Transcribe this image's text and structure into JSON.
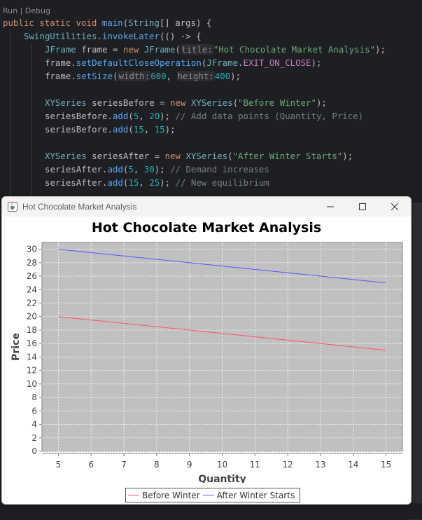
{
  "editor": {
    "run_hint": "Run | Debug",
    "lines": [
      {
        "x": 0,
        "y": 0,
        "tokens": [
          [
            "kw",
            "public "
          ],
          [
            "kw",
            "static "
          ],
          [
            "kw",
            "void "
          ],
          [
            "fn",
            "main"
          ],
          [
            "txt",
            "("
          ],
          [
            "ty",
            "String"
          ],
          [
            "txt",
            "[] args) {"
          ]
        ]
      },
      {
        "x": 30,
        "y": 19,
        "tokens": [
          [
            "ty",
            "SwingUtilities"
          ],
          [
            "txt",
            "."
          ],
          [
            "fn",
            "invokeLater"
          ],
          [
            "txt",
            "(() -> {"
          ]
        ]
      },
      {
        "x": 60,
        "y": 38,
        "tokens": [
          [
            "ty",
            "JFrame"
          ],
          [
            "txt",
            " frame = "
          ],
          [
            "kw",
            "new "
          ],
          [
            "ty",
            "JFrame"
          ],
          [
            "txt",
            "("
          ],
          [
            "hint",
            "title:"
          ],
          [
            "st",
            "\"Hot Chocolate Market Analysis\""
          ],
          [
            "txt",
            ");"
          ]
        ]
      },
      {
        "x": 60,
        "y": 57,
        "tokens": [
          [
            "txt",
            "frame."
          ],
          [
            "fn",
            "setDefaultCloseOperation"
          ],
          [
            "txt",
            "("
          ],
          [
            "ty",
            "JFrame"
          ],
          [
            "txt",
            "."
          ],
          [
            "fld",
            "EXIT_ON_CLOSE"
          ],
          [
            "txt",
            ");"
          ]
        ]
      },
      {
        "x": 60,
        "y": 76,
        "tokens": [
          [
            "txt",
            "frame."
          ],
          [
            "fn",
            "setSize"
          ],
          [
            "txt",
            "("
          ],
          [
            "hint",
            "width:"
          ],
          [
            "nu",
            "600"
          ],
          [
            "txt",
            ", "
          ],
          [
            "hint",
            "height:"
          ],
          [
            "nu",
            "400"
          ],
          [
            "txt",
            ");"
          ]
        ]
      },
      {
        "x": 60,
        "y": 114,
        "tokens": [
          [
            "ty",
            "XYSeries"
          ],
          [
            "txt",
            " seriesBefore = "
          ],
          [
            "kw",
            "new "
          ],
          [
            "ty",
            "XYSeries"
          ],
          [
            "txt",
            "("
          ],
          [
            "st",
            "\"Before Winter\""
          ],
          [
            "txt",
            ");"
          ]
        ]
      },
      {
        "x": 60,
        "y": 133,
        "tokens": [
          [
            "txt",
            "seriesBefore."
          ],
          [
            "fn",
            "add"
          ],
          [
            "txt",
            "("
          ],
          [
            "nu",
            "5"
          ],
          [
            "txt",
            ", "
          ],
          [
            "nu",
            "20"
          ],
          [
            "txt",
            "); "
          ],
          [
            "cm",
            "// Add data points (Quantity, Price)"
          ]
        ]
      },
      {
        "x": 60,
        "y": 152,
        "tokens": [
          [
            "txt",
            "seriesBefore."
          ],
          [
            "fn",
            "add"
          ],
          [
            "txt",
            "("
          ],
          [
            "nu",
            "15"
          ],
          [
            "txt",
            ", "
          ],
          [
            "nu",
            "15"
          ],
          [
            "txt",
            ");"
          ]
        ]
      },
      {
        "x": 60,
        "y": 190,
        "tokens": [
          [
            "ty",
            "XYSeries"
          ],
          [
            "txt",
            " seriesAfter = "
          ],
          [
            "kw",
            "new "
          ],
          [
            "ty",
            "XYSeries"
          ],
          [
            "txt",
            "("
          ],
          [
            "st",
            "\"After Winter Starts\""
          ],
          [
            "txt",
            ");"
          ]
        ]
      },
      {
        "x": 60,
        "y": 209,
        "tokens": [
          [
            "txt",
            "seriesAfter."
          ],
          [
            "fn",
            "add"
          ],
          [
            "txt",
            "("
          ],
          [
            "nu",
            "5"
          ],
          [
            "txt",
            ", "
          ],
          [
            "nu",
            "30"
          ],
          [
            "txt",
            "); "
          ],
          [
            "cm",
            "// Demand increases"
          ]
        ]
      },
      {
        "x": 60,
        "y": 228,
        "tokens": [
          [
            "txt",
            "seriesAfter."
          ],
          [
            "fn",
            "add"
          ],
          [
            "txt",
            "("
          ],
          [
            "nu",
            "15"
          ],
          [
            "txt",
            ", "
          ],
          [
            "nu",
            "25"
          ],
          [
            "txt",
            "); "
          ],
          [
            "cm",
            "// New equilibrium"
          ]
        ]
      }
    ]
  },
  "window": {
    "title": "Hot Chocolate Market Analysis",
    "icon": "java-cup-icon",
    "buttons": [
      "minimize-icon",
      "maximize-icon",
      "close-icon"
    ]
  },
  "chart_data": {
    "type": "line",
    "title": "Hot Chocolate Market Analysis",
    "xlabel": "Quantity",
    "ylabel": "Price",
    "xlim": [
      4.5,
      15.5
    ],
    "ylim": [
      0,
      31
    ],
    "xticks": [
      5,
      6,
      7,
      8,
      9,
      10,
      11,
      12,
      13,
      14,
      15
    ],
    "yticks": [
      0,
      2,
      4,
      6,
      8,
      10,
      12,
      14,
      16,
      18,
      20,
      22,
      24,
      26,
      28,
      30
    ],
    "grid": true,
    "legend_position": "bottom",
    "series": [
      {
        "name": "Before Winter",
        "color": "#ff5555",
        "points": [
          [
            5,
            20
          ],
          [
            15,
            15
          ]
        ]
      },
      {
        "name": "After Winter Starts",
        "color": "#5555ff",
        "points": [
          [
            5,
            30
          ],
          [
            15,
            25
          ]
        ]
      }
    ]
  }
}
